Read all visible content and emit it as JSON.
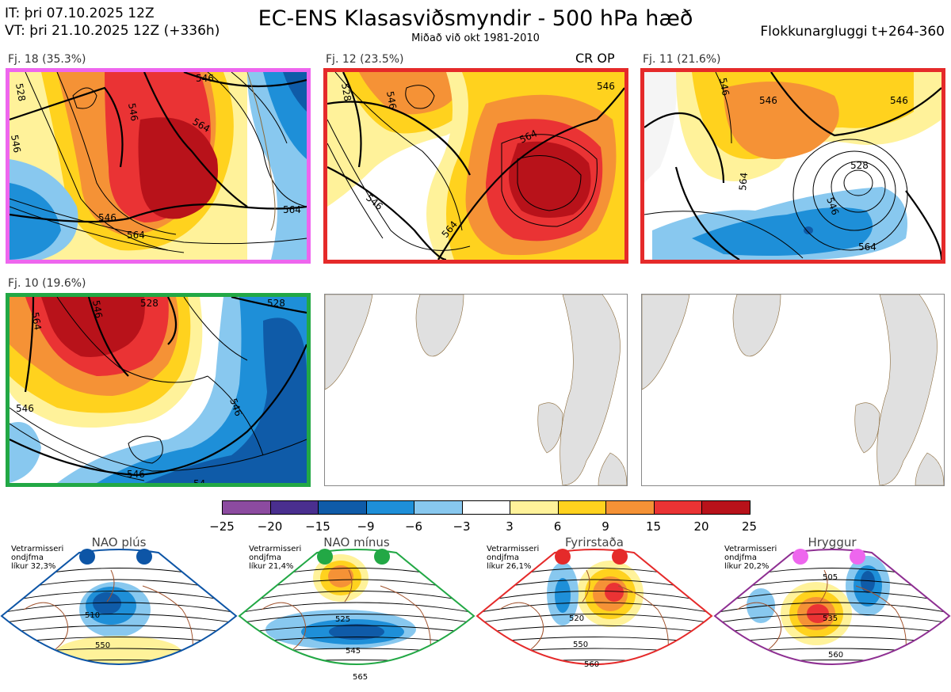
{
  "header": {
    "it_line": "IT: þri 07.10.2025 12Z",
    "vt_line": "VT: þri 21.10.2025 12Z  (+336h)",
    "title": "EC-ENS Klasasviðsmyndir - 500 hPa hæð",
    "subtitle": "Miðað við okt 1981-2010",
    "window": "Flokkunargluggi t+264-360"
  },
  "panels": [
    {
      "label": "Fj. 18 (35.3%)",
      "border_color": "#ee66ee",
      "note": ""
    },
    {
      "label": "Fj. 12 (23.5%)",
      "border_color": "#e52a2a",
      "note": "CR OP"
    },
    {
      "label": "Fj. 11 (21.6%)",
      "border_color": "#e52a2a",
      "note": ""
    },
    {
      "label": "Fj. 10 (19.6%)",
      "border_color": "#22a845",
      "note": ""
    }
  ],
  "contour_labels": {
    "p1": [
      "528",
      "546",
      "546",
      "564",
      "546",
      "564",
      "564",
      "546"
    ],
    "p2": [
      "528",
      "546",
      "546",
      "564",
      "546",
      "564"
    ],
    "p3": [
      "546",
      "546",
      "528",
      "564",
      "546",
      "564",
      "546"
    ],
    "p4": [
      "564",
      "546",
      "528",
      "528",
      "546",
      "546",
      "546",
      "54"
    ]
  },
  "colorbar": {
    "ticks": [
      "−25",
      "−20",
      "−15",
      "−9",
      "−6",
      "−3",
      "3",
      "6",
      "9",
      "15",
      "20",
      "25"
    ],
    "colors": [
      "#8c4ba0",
      "#4a2f8f",
      "#0f5ba8",
      "#1e8fd8",
      "#88c8ef",
      "#ffffff",
      "#fff29a",
      "#ffd21e",
      "#f59236",
      "#ea3334",
      "#b8121a"
    ]
  },
  "regimes": [
    {
      "name": "NAO plús",
      "info": [
        "Vetrarmisseri",
        "ondjfma",
        "líkur 32,3%"
      ],
      "color": "#0d55a6",
      "labels": [
        "510",
        "550"
      ]
    },
    {
      "name": "NAO mínus",
      "info": [
        "Vetrarmisseri",
        "ondjfma",
        "líkur 21,4%"
      ],
      "color": "#22a845",
      "labels": [
        "525",
        "545",
        "565"
      ]
    },
    {
      "name": "Fyrirstaða",
      "info": [
        "Vetrarmisseri",
        "ondjfma",
        "líkur 26,1%"
      ],
      "color": "#e52a2a",
      "labels": [
        "520",
        "550",
        "560"
      ]
    },
    {
      "name": "Hryggur",
      "info": [
        "Vetrarmisseri",
        "ondjfma",
        "líkur 20,2%"
      ],
      "color": "#ee66ee",
      "labels": [
        "505",
        "535",
        "560"
      ]
    }
  ],
  "regime_border_colors": [
    "#0d55a6",
    "#22a845",
    "#e52a2a",
    "#8e2f92"
  ]
}
